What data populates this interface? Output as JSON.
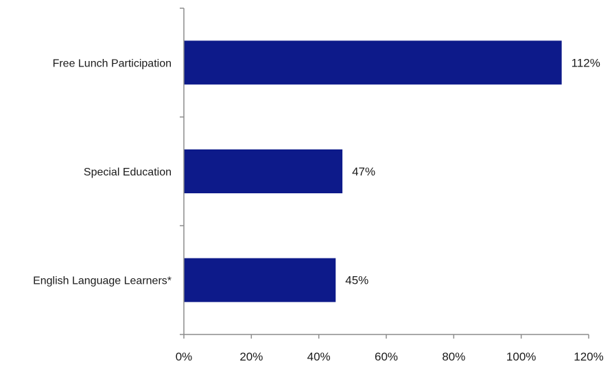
{
  "chart_data": {
    "type": "bar",
    "orientation": "horizontal",
    "categories": [
      "Free Lunch Participation",
      "Special Education",
      "English Language Learners*"
    ],
    "values": [
      112,
      47,
      45
    ],
    "value_labels": [
      "112%",
      "47%",
      "45%"
    ],
    "xlim": [
      0,
      120
    ],
    "xticks": [
      0,
      20,
      40,
      60,
      80,
      100,
      120
    ],
    "xtick_labels": [
      "0%",
      "20%",
      "40%",
      "60%",
      "80%",
      "100%",
      "120%"
    ],
    "bar_color": "#0d1a8a",
    "grid": false,
    "title": "",
    "xlabel": "",
    "ylabel": ""
  }
}
